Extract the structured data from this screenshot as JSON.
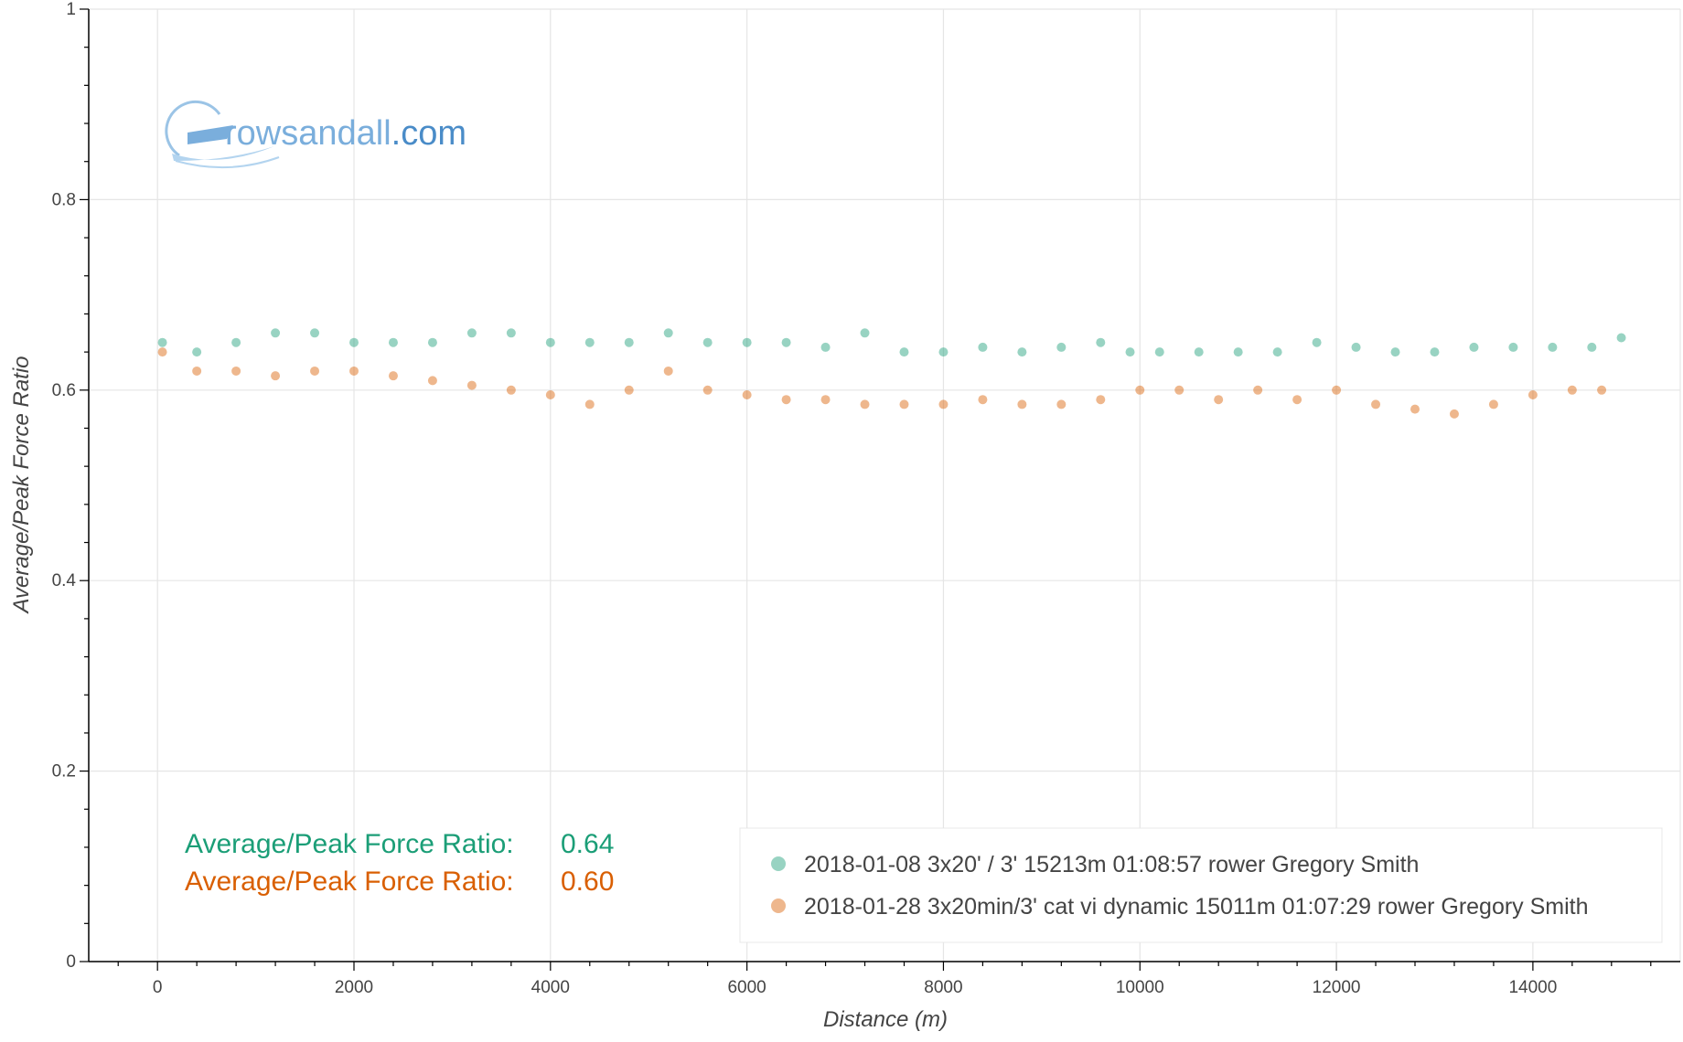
{
  "logo": {
    "text_prefix": "rowsandall",
    "text_suffix": ".com",
    "color_main": "#7aaedc",
    "color_suffix": "#4a8cc8"
  },
  "stats": [
    {
      "label": "Average/Peak Force Ratio:",
      "value": "0.64",
      "color": "#1b9e77"
    },
    {
      "label": "Average/Peak Force Ratio:",
      "value": "0.60",
      "color": "#d95f02"
    }
  ],
  "chart_data": {
    "type": "scatter",
    "xlabel": "Distance (m)",
    "ylabel": "Average/Peak Force Ratio",
    "xlim": [
      -700,
      15500
    ],
    "ylim": [
      0,
      1
    ],
    "x_ticks": [
      0,
      2000,
      4000,
      6000,
      8000,
      10000,
      12000,
      14000
    ],
    "x_tick_labels": [
      "0",
      "2000",
      "4000",
      "6000",
      "8000",
      "10000",
      "12000",
      "14000"
    ],
    "y_ticks": [
      0,
      0.2,
      0.4,
      0.6,
      0.8,
      1
    ],
    "y_tick_labels": [
      "0",
      "0.2",
      "0.4",
      "0.6",
      "0.8",
      "1"
    ],
    "grid": true,
    "legend_position": "bottom-right",
    "series": [
      {
        "name": "2018-01-08 3x20' / 3' 15213m 01:08:57 rower Gregory Smith",
        "color": "#1b9e77",
        "x": [
          50,
          400,
          800,
          1200,
          1600,
          2000,
          2400,
          2800,
          3200,
          3600,
          4000,
          4400,
          4800,
          5200,
          5600,
          6000,
          6400,
          6800,
          7200,
          7600,
          8000,
          8400,
          8800,
          9200,
          9600,
          9900,
          10200,
          10600,
          11000,
          11400,
          11800,
          12200,
          12600,
          13000,
          13400,
          13800,
          14200,
          14600,
          14900
        ],
        "y": [
          0.65,
          0.64,
          0.65,
          0.66,
          0.66,
          0.65,
          0.65,
          0.65,
          0.66,
          0.66,
          0.65,
          0.65,
          0.65,
          0.66,
          0.65,
          0.65,
          0.65,
          0.645,
          0.66,
          0.64,
          0.64,
          0.645,
          0.64,
          0.645,
          0.65,
          0.64,
          0.64,
          0.64,
          0.64,
          0.64,
          0.65,
          0.645,
          0.64,
          0.64,
          0.645,
          0.645,
          0.645,
          0.645,
          0.655
        ]
      },
      {
        "name": "2018-01-28 3x20min/3' cat vi dynamic 15011m 01:07:29 rower Gregory Smith",
        "color": "#d95f02",
        "x": [
          50,
          400,
          800,
          1200,
          1600,
          2000,
          2400,
          2800,
          3200,
          3600,
          4000,
          4400,
          4800,
          5200,
          5600,
          6000,
          6400,
          6800,
          7200,
          7600,
          8000,
          8400,
          8800,
          9200,
          9600,
          10000,
          10400,
          10800,
          11200,
          11600,
          12000,
          12400,
          12800,
          13200,
          13600,
          14000,
          14400,
          14700
        ],
        "y": [
          0.64,
          0.62,
          0.62,
          0.615,
          0.62,
          0.62,
          0.615,
          0.61,
          0.605,
          0.6,
          0.595,
          0.585,
          0.6,
          0.62,
          0.6,
          0.595,
          0.59,
          0.59,
          0.585,
          0.585,
          0.585,
          0.59,
          0.585,
          0.585,
          0.59,
          0.6,
          0.6,
          0.59,
          0.6,
          0.59,
          0.6,
          0.585,
          0.58,
          0.575,
          0.585,
          0.595,
          0.6,
          0.6
        ]
      }
    ]
  }
}
